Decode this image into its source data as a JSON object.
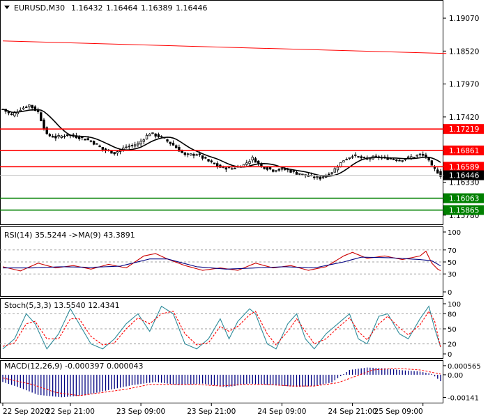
{
  "header": {
    "symbol": "EURUSD,M30",
    "open": "1.16432",
    "high": "1.16464",
    "low": "1.16389",
    "close": "1.16446"
  },
  "colors": {
    "resistance": "#ff0000",
    "support": "#008000",
    "ma": "#000000",
    "rsi_line": "#cc0000",
    "rsi_ma": "#000080",
    "stoch_main": "#2e8b9a",
    "stoch_signal": "#ff0000",
    "macd_hist": "#000080",
    "macd_signal": "#ff0000",
    "price_tag": "#000000"
  },
  "chart_data": [
    {
      "type": "line",
      "panel": "price",
      "title": "EURUSD,M30",
      "ylim": [
        1.1565,
        1.1935
      ],
      "ytick_labels": [
        "1.19070",
        "1.18520",
        "1.17970",
        "1.17420",
        "1.16330",
        "1.15780"
      ],
      "ytick_values": [
        1.1907,
        1.1852,
        1.1797,
        1.1742,
        1.1633,
        1.1578
      ],
      "x_labels": [
        "22 Sep 2020",
        "22 Sep 21:00",
        "23 Sep 09:00",
        "23 Sep 21:00",
        "24 Sep 09:00",
        "24 Sep 21:00",
        "25 Sep 09:00"
      ],
      "x_label_positions": [
        0,
        23,
        47,
        71,
        95,
        119,
        143
      ],
      "n_bars": 150,
      "close_anchors": [
        [
          0,
          1.1755
        ],
        [
          3,
          1.1745
        ],
        [
          6,
          1.1755
        ],
        [
          9,
          1.1762
        ],
        [
          12,
          1.175
        ],
        [
          15,
          1.1712
        ],
        [
          18,
          1.1708
        ],
        [
          22,
          1.1712
        ],
        [
          26,
          1.1708
        ],
        [
          30,
          1.1702
        ],
        [
          34,
          1.1688
        ],
        [
          38,
          1.1682
        ],
        [
          42,
          1.1692
        ],
        [
          46,
          1.1697
        ],
        [
          50,
          1.1715
        ],
        [
          54,
          1.1708
        ],
        [
          58,
          1.1695
        ],
        [
          62,
          1.1678
        ],
        [
          66,
          1.168
        ],
        [
          70,
          1.1668
        ],
        [
          74,
          1.1658
        ],
        [
          78,
          1.1656
        ],
        [
          82,
          1.1662
        ],
        [
          85,
          1.1673
        ],
        [
          88,
          1.166
        ],
        [
          92,
          1.1653
        ],
        [
          96,
          1.1655
        ],
        [
          100,
          1.1648
        ],
        [
          104,
          1.1643
        ],
        [
          108,
          1.164
        ],
        [
          112,
          1.165
        ],
        [
          116,
          1.167
        ],
        [
          119,
          1.1678
        ],
        [
          123,
          1.1672
        ],
        [
          127,
          1.1675
        ],
        [
          131,
          1.1673
        ],
        [
          135,
          1.167
        ],
        [
          139,
          1.1675
        ],
        [
          142,
          1.1679
        ],
        [
          144,
          1.1676
        ],
        [
          146,
          1.1659
        ],
        [
          148,
          1.165
        ],
        [
          149,
          1.16446
        ]
      ],
      "trendline": {
        "from": [
          0,
          1.1869
        ],
        "to": [
          150,
          1.1848
        ]
      },
      "levels": [
        {
          "label": "1.17219",
          "value": 1.17219,
          "kind": "resistance"
        },
        {
          "label": "1.16861",
          "value": 1.16861,
          "kind": "resistance"
        },
        {
          "label": "1.16589",
          "value": 1.16589,
          "kind": "resistance"
        },
        {
          "label": "1.16063",
          "value": 1.16063,
          "kind": "support"
        },
        {
          "label": "1.15865",
          "value": 1.15865,
          "kind": "support"
        }
      ],
      "current_price": {
        "label": "1.16446",
        "value": 1.16446
      }
    },
    {
      "type": "line",
      "panel": "rsi",
      "title": "RSI(14) 35.5244 ->MA(9) 43.3891",
      "ylim": [
        0,
        100
      ],
      "ytick_labels": [
        "100",
        "70",
        "50",
        "30",
        "0"
      ],
      "ytick_values": [
        100,
        70,
        50,
        30,
        0
      ],
      "series": [
        {
          "name": "RSI(14)",
          "anchors": [
            [
              0,
              42
            ],
            [
              6,
              35
            ],
            [
              12,
              48
            ],
            [
              18,
              40
            ],
            [
              24,
              44
            ],
            [
              30,
              38
            ],
            [
              36,
              46
            ],
            [
              42,
              40
            ],
            [
              48,
              60
            ],
            [
              52,
              64
            ],
            [
              56,
              55
            ],
            [
              62,
              44
            ],
            [
              68,
              36
            ],
            [
              74,
              40
            ],
            [
              80,
              36
            ],
            [
              86,
              48
            ],
            [
              92,
              40
            ],
            [
              98,
              44
            ],
            [
              104,
              36
            ],
            [
              110,
              42
            ],
            [
              116,
              60
            ],
            [
              119,
              66
            ],
            [
              124,
              56
            ],
            [
              130,
              60
            ],
            [
              136,
              54
            ],
            [
              142,
              60
            ],
            [
              144,
              68
            ],
            [
              146,
              48
            ],
            [
              148,
              38
            ],
            [
              149,
              35.5
            ]
          ]
        },
        {
          "name": "MA(9)",
          "anchors": [
            [
              0,
              40
            ],
            [
              10,
              40
            ],
            [
              20,
              42
            ],
            [
              30,
              41
            ],
            [
              40,
              43
            ],
            [
              50,
              55
            ],
            [
              56,
              55
            ],
            [
              66,
              42
            ],
            [
              76,
              38
            ],
            [
              86,
              40
            ],
            [
              96,
              42
            ],
            [
              106,
              40
            ],
            [
              116,
              50
            ],
            [
              122,
              58
            ],
            [
              132,
              57
            ],
            [
              142,
              54
            ],
            [
              146,
              52
            ],
            [
              149,
              43.4
            ]
          ]
        }
      ]
    },
    {
      "type": "line",
      "panel": "stochastic",
      "title": "Stoch(5,3,3) 13.5540 12.4341",
      "ylim": [
        0,
        100
      ],
      "ytick_labels": [
        "100",
        "80",
        "50",
        "20",
        "0"
      ],
      "ytick_values": [
        100,
        80,
        50,
        20,
        0
      ],
      "series": [
        {
          "name": "Stoch main",
          "anchors": [
            [
              0,
              10
            ],
            [
              4,
              30
            ],
            [
              8,
              80
            ],
            [
              11,
              60
            ],
            [
              15,
              10
            ],
            [
              19,
              40
            ],
            [
              23,
              90
            ],
            [
              26,
              60
            ],
            [
              30,
              20
            ],
            [
              34,
              10
            ],
            [
              38,
              30
            ],
            [
              42,
              60
            ],
            [
              46,
              80
            ],
            [
              50,
              45
            ],
            [
              54,
              95
            ],
            [
              58,
              80
            ],
            [
              62,
              20
            ],
            [
              66,
              10
            ],
            [
              70,
              30
            ],
            [
              74,
              70
            ],
            [
              77,
              30
            ],
            [
              80,
              65
            ],
            [
              84,
              90
            ],
            [
              86,
              80
            ],
            [
              90,
              20
            ],
            [
              93,
              10
            ],
            [
              97,
              60
            ],
            [
              100,
              80
            ],
            [
              103,
              30
            ],
            [
              106,
              10
            ],
            [
              110,
              40
            ],
            [
              114,
              60
            ],
            [
              118,
              80
            ],
            [
              121,
              30
            ],
            [
              124,
              20
            ],
            [
              128,
              75
            ],
            [
              131,
              80
            ],
            [
              135,
              40
            ],
            [
              138,
              30
            ],
            [
              142,
              70
            ],
            [
              145,
              95
            ],
            [
              147,
              50
            ],
            [
              149,
              13.6
            ]
          ]
        },
        {
          "name": "Stoch signal",
          "anchors": [
            [
              0,
              15
            ],
            [
              4,
              22
            ],
            [
              8,
              60
            ],
            [
              11,
              65
            ],
            [
              15,
              30
            ],
            [
              19,
              30
            ],
            [
              23,
              70
            ],
            [
              26,
              70
            ],
            [
              30,
              35
            ],
            [
              34,
              18
            ],
            [
              38,
              22
            ],
            [
              42,
              50
            ],
            [
              46,
              72
            ],
            [
              50,
              60
            ],
            [
              54,
              80
            ],
            [
              58,
              85
            ],
            [
              62,
              40
            ],
            [
              66,
              18
            ],
            [
              70,
              22
            ],
            [
              74,
              55
            ],
            [
              77,
              45
            ],
            [
              80,
              55
            ],
            [
              84,
              78
            ],
            [
              86,
              85
            ],
            [
              90,
              40
            ],
            [
              93,
              18
            ],
            [
              97,
              45
            ],
            [
              100,
              70
            ],
            [
              103,
              45
            ],
            [
              106,
              20
            ],
            [
              110,
              30
            ],
            [
              114,
              52
            ],
            [
              118,
              72
            ],
            [
              121,
              45
            ],
            [
              124,
              28
            ],
            [
              128,
              60
            ],
            [
              131,
              75
            ],
            [
              135,
              52
            ],
            [
              138,
              38
            ],
            [
              142,
              58
            ],
            [
              145,
              85
            ],
            [
              147,
              65
            ],
            [
              149,
              12.4
            ]
          ]
        }
      ]
    },
    {
      "type": "bar",
      "panel": "macd",
      "title": "MACD(12,26,9) -0.000397 0.000043",
      "ylim": [
        -0.00165,
        0.00082
      ],
      "ytick_labels": [
        "0.000565",
        "0.00",
        "-0.00141"
      ],
      "ytick_values": [
        0.000565,
        0.0,
        -0.00141
      ],
      "series": [
        {
          "name": "MACD histogram",
          "anchors": [
            [
              0,
              -0.00045
            ],
            [
              5,
              -0.00075
            ],
            [
              12,
              -0.00125
            ],
            [
              20,
              -0.0014
            ],
            [
              28,
              -0.00128
            ],
            [
              36,
              -0.00095
            ],
            [
              44,
              -0.00065
            ],
            [
              52,
              -0.00045
            ],
            [
              60,
              -0.00065
            ],
            [
              68,
              -0.00055
            ],
            [
              76,
              -0.00078
            ],
            [
              84,
              -0.00055
            ],
            [
              92,
              -0.00065
            ],
            [
              100,
              -0.00075
            ],
            [
              106,
              -0.0007
            ],
            [
              112,
              -0.00048
            ],
            [
              118,
              0.0003
            ],
            [
              124,
              0.00045
            ],
            [
              130,
              0.0004
            ],
            [
              136,
              0.00028
            ],
            [
              142,
              0.0002
            ],
            [
              146,
              5e-05
            ],
            [
              149,
              -0.000397
            ]
          ]
        },
        {
          "name": "MACD signal",
          "anchors": [
            [
              0,
              -0.0002
            ],
            [
              10,
              -0.0006
            ],
            [
              18,
              -0.0011
            ],
            [
              26,
              -0.0013
            ],
            [
              34,
              -0.0011
            ],
            [
              42,
              -0.0009
            ],
            [
              50,
              -0.0006
            ],
            [
              58,
              -0.0006
            ],
            [
              66,
              -0.0006
            ],
            [
              74,
              -0.0007
            ],
            [
              82,
              -0.0006
            ],
            [
              90,
              -0.0006
            ],
            [
              98,
              -0.0007
            ],
            [
              106,
              -0.0007
            ],
            [
              114,
              -0.0005
            ],
            [
              120,
              -0.0001
            ],
            [
              126,
              0.0003
            ],
            [
              134,
              0.0004
            ],
            [
              142,
              0.0003
            ],
            [
              149,
              4.3e-05
            ]
          ]
        }
      ]
    }
  ]
}
